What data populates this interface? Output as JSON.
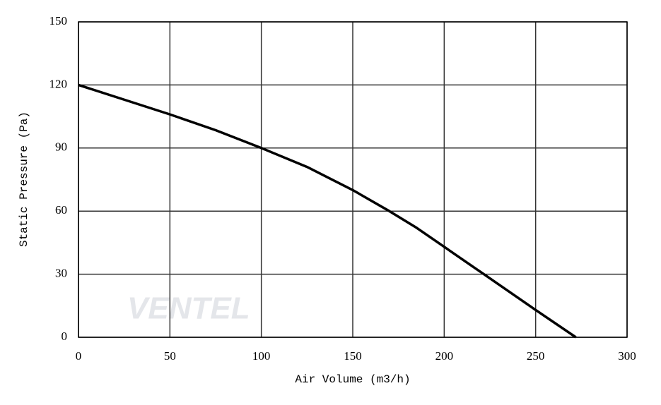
{
  "chart_data": {
    "type": "line",
    "x_label": "Air Volume (m3/h)",
    "y_label": "Static Pressure (Pa)",
    "watermark": "VENTEL",
    "x": [
      0,
      25,
      50,
      75,
      100,
      125,
      150,
      170,
      185,
      200,
      220,
      250,
      272
    ],
    "series": [
      {
        "name": "Static Pressure",
        "color": "#000000",
        "values": [
          120,
          113,
          106,
          98.5,
          90,
          81,
          70,
          60,
          52,
          43,
          31,
          13,
          0
        ]
      }
    ],
    "xlim": [
      0,
      300
    ],
    "xticks": [
      0,
      50,
      100,
      150,
      200,
      250,
      300
    ],
    "ylim": [
      0,
      150
    ],
    "yticks": [
      0,
      30,
      60,
      90,
      120,
      150
    ],
    "grid": true
  }
}
